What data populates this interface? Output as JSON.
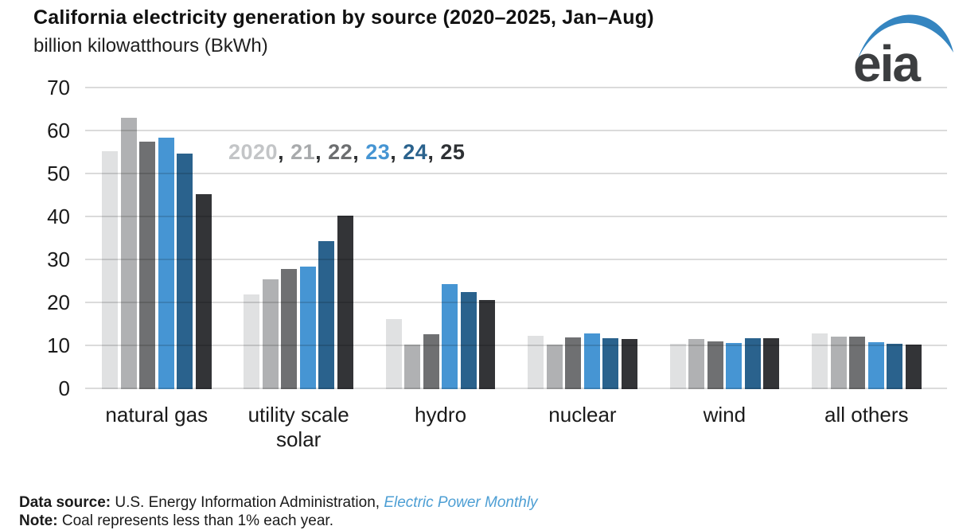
{
  "header": {
    "title": "California electricity generation by source (2020–2025, Jan–Aug)",
    "subtitle": "billion kilowatthours (BkWh)"
  },
  "logo": {
    "text": "eia",
    "text_color": "#3c3e40",
    "swoosh_color": "#3585c0"
  },
  "legend": {
    "separator": ", ",
    "separator_color": "#2b2d2f",
    "items": [
      {
        "label": "2020",
        "color": "#c3c5c7"
      },
      {
        "label": "21",
        "color": "#a8aaac"
      },
      {
        "label": "22",
        "color": "#6c6e70"
      },
      {
        "label": "23",
        "color": "#4695d3"
      },
      {
        "label": "24",
        "color": "#2a628d"
      },
      {
        "label": "25",
        "color": "#2e3134"
      }
    ]
  },
  "chart_data": {
    "type": "bar",
    "title": "California electricity generation by source (2020–2025, Jan–Aug)",
    "ylabel": "billion kilowatthours (BkWh)",
    "xlabel": "",
    "ylim": [
      0,
      70
    ],
    "yticks": [
      70,
      60,
      50,
      40,
      30,
      20,
      10,
      0
    ],
    "grid": true,
    "legend_position": "inside-top-left",
    "categories": [
      "natural gas",
      "utility scale solar",
      "hydro",
      "nuclear",
      "wind",
      "all others"
    ],
    "series": [
      {
        "name": "2020",
        "color": "#e0e1e2",
        "values": [
          55.4,
          22.0,
          16.3,
          12.5,
          10.5,
          13.0
        ]
      },
      {
        "name": "21",
        "color": "#b0b1b3",
        "values": [
          63.2,
          25.5,
          10.3,
          10.3,
          11.7,
          12.3
        ]
      },
      {
        "name": "22",
        "color": "#6f7072",
        "values": [
          57.6,
          28.0,
          12.8,
          12.1,
          11.1,
          12.2
        ]
      },
      {
        "name": "23",
        "color": "#4695d3",
        "values": [
          58.6,
          28.5,
          24.4,
          12.9,
          10.7,
          11.0
        ]
      },
      {
        "name": "24",
        "color": "#2a628d",
        "values": [
          54.9,
          34.4,
          22.6,
          11.8,
          11.9,
          10.6
        ]
      },
      {
        "name": "25",
        "color": "#333437",
        "values": [
          45.4,
          40.3,
          20.7,
          11.7,
          11.8,
          10.4
        ]
      }
    ]
  },
  "footer": {
    "source_label": "Data source:",
    "source_text": " U.S. Energy Information Administration, ",
    "source_link": "Electric Power Monthly",
    "note_label": "Note:",
    "note_text": " Coal represents less than 1% each year."
  }
}
